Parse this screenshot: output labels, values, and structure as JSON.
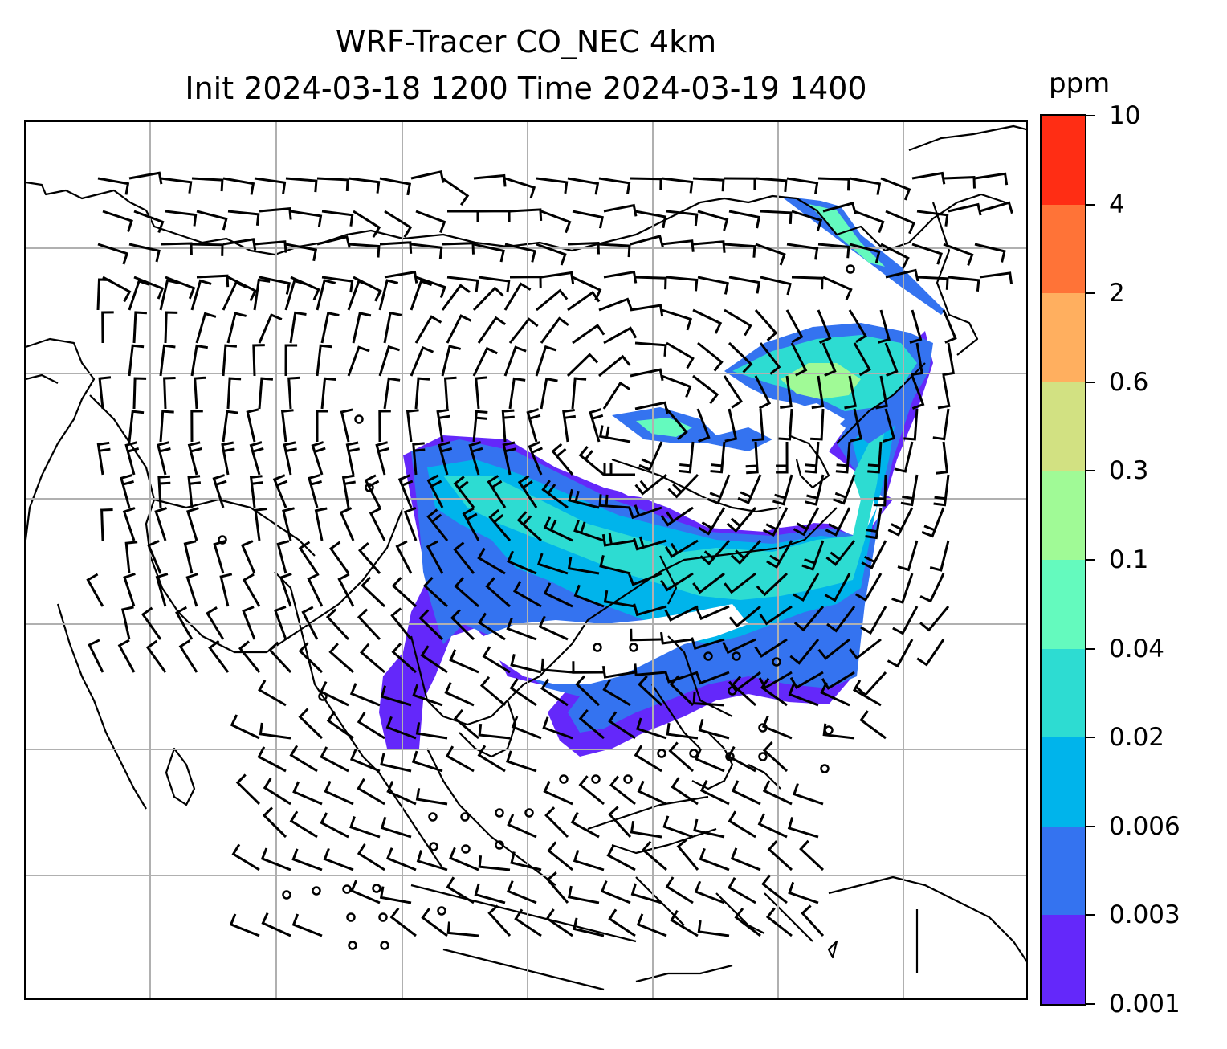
{
  "title": {
    "line1": "WRF-Tracer CO_NEC 4km",
    "line2": "Init 2024-03-18 1200 Time 2024-03-19 1400"
  },
  "colorbar": {
    "unit": "ppm",
    "labels": [
      "0.001",
      "0.003",
      "0.006",
      "0.02",
      "0.04",
      "0.1",
      "0.3",
      "0.6",
      "2",
      "4",
      "10"
    ],
    "colors": [
      "#6428fa",
      "#3473f0",
      "#00b4eb",
      "#2ddcd2",
      "#64fabe",
      "#a0fa96",
      "#d2e182",
      "#ffaf5f",
      "#ff7337",
      "#ff2d14"
    ]
  },
  "map": {
    "gridlines": true,
    "gridline_color": "#b0b0b0",
    "coastline_color": "#000000",
    "wind_barbs": true
  }
}
